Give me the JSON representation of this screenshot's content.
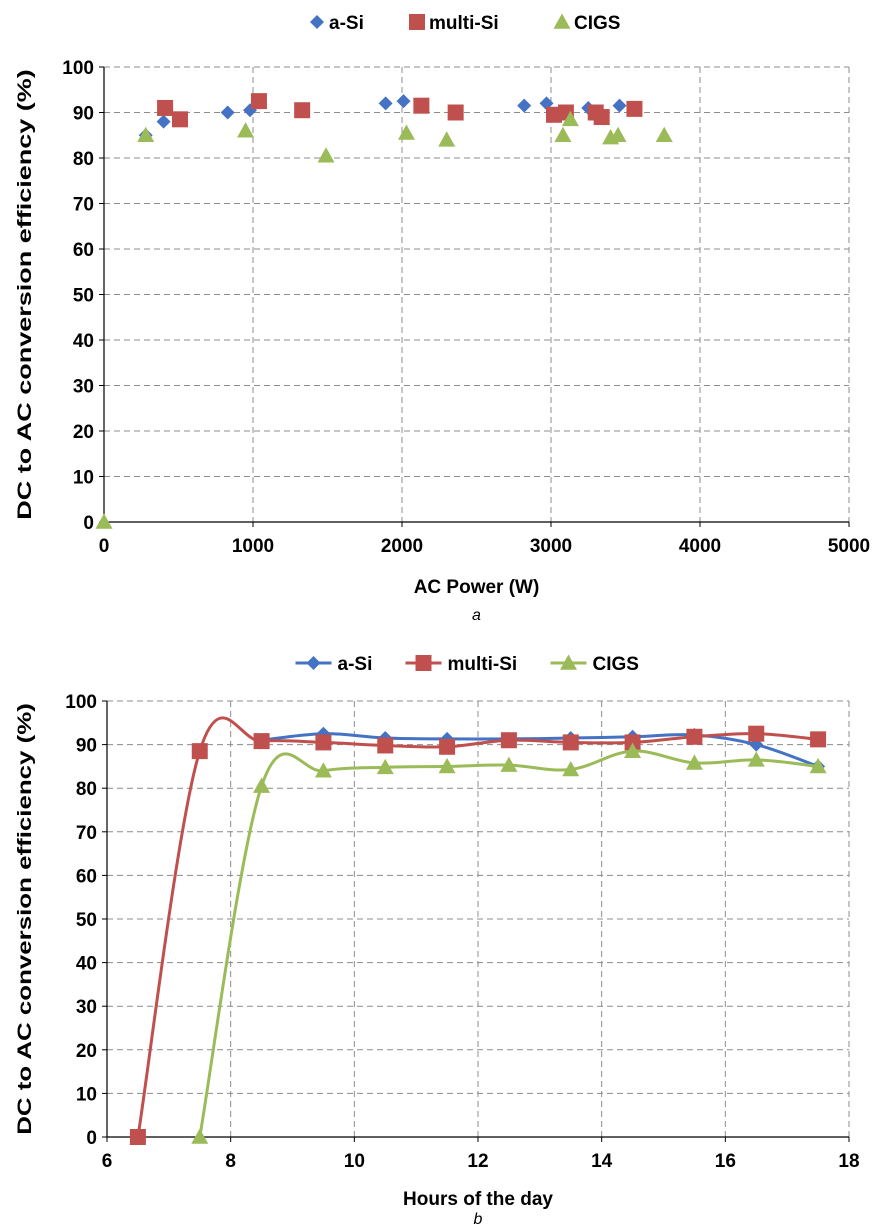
{
  "chart_data": [
    {
      "type": "scatter",
      "panel": "a",
      "title": "",
      "xlabel": "AC Power  (W)",
      "ylabel": "DC to AC conversion efficiency (%)",
      "xlim": [
        0,
        5000
      ],
      "ylim": [
        0,
        100
      ],
      "xticks": [
        0,
        1000,
        2000,
        3000,
        4000,
        5000
      ],
      "yticks": [
        0,
        10,
        20,
        30,
        40,
        50,
        60,
        70,
        80,
        90,
        100
      ],
      "grid": "dashed",
      "legend_position": "top-center",
      "series": [
        {
          "name": "a-Si",
          "color": "#4472C4",
          "marker": "diamond",
          "x": [
            280,
            400,
            830,
            980,
            1890,
            2010,
            2820,
            2970,
            3250,
            3460
          ],
          "y": [
            85,
            88,
            90,
            90.5,
            92,
            92.5,
            91.5,
            92,
            91,
            91.5
          ]
        },
        {
          "name": "multi-Si",
          "color": "#C0504D",
          "marker": "square",
          "x": [
            410,
            510,
            1040,
            1330,
            2130,
            2360,
            3020,
            3100,
            3300,
            3340,
            3560
          ],
          "y": [
            91,
            88.5,
            92.5,
            90.5,
            91.5,
            90,
            89.5,
            90,
            90,
            89,
            90.8
          ]
        },
        {
          "name": "CIGS",
          "color": "#9BBB59",
          "marker": "triangle",
          "x": [
            0,
            280,
            950,
            1490,
            2030,
            2300,
            3080,
            3130,
            3400,
            3450,
            3760
          ],
          "y": [
            0,
            85,
            86,
            80.5,
            85.5,
            84,
            85,
            88.5,
            84.5,
            85,
            85
          ]
        }
      ],
      "caption": "a"
    },
    {
      "type": "line",
      "panel": "b",
      "title": "",
      "xlabel": "Hours of the day",
      "ylabel": "DC to AC conversion efficiency (%)",
      "xlim": [
        6,
        18
      ],
      "ylim": [
        0,
        100
      ],
      "xticks": [
        6,
        8,
        10,
        12,
        14,
        16,
        18
      ],
      "yticks": [
        0,
        10,
        20,
        30,
        40,
        50,
        60,
        70,
        80,
        90,
        100
      ],
      "grid": "dashed",
      "smooth": true,
      "legend_position": "top-center",
      "series": [
        {
          "name": "a-Si",
          "color": "#4472C4",
          "marker": "diamond",
          "x": [
            8.5,
            9.5,
            10.5,
            11.5,
            12.5,
            13.5,
            14.5,
            15.5,
            16.5,
            17.5
          ],
          "y": [
            91,
            92.5,
            91.5,
            91.3,
            91.3,
            91.5,
            91.8,
            92.2,
            90,
            85
          ]
        },
        {
          "name": "multi-Si",
          "color": "#C0504D",
          "marker": "square",
          "x": [
            6.5,
            7.5,
            8.5,
            9.5,
            10.5,
            11.5,
            12.5,
            13.5,
            14.5,
            15.5,
            16.5,
            17.5
          ],
          "y": [
            0,
            88.5,
            90.8,
            90.5,
            89.8,
            89.5,
            91,
            90.5,
            90.5,
            91.8,
            92.5,
            91.2
          ]
        },
        {
          "name": "CIGS",
          "color": "#9BBB59",
          "marker": "triangle",
          "x": [
            7.5,
            8.5,
            9.5,
            10.5,
            11.5,
            12.5,
            13.5,
            14.5,
            15.5,
            16.5,
            17.5
          ],
          "y": [
            0,
            80.5,
            84,
            84.8,
            85,
            85.3,
            84.3,
            88.5,
            85.8,
            86.5,
            85
          ]
        }
      ],
      "caption": "b"
    }
  ]
}
